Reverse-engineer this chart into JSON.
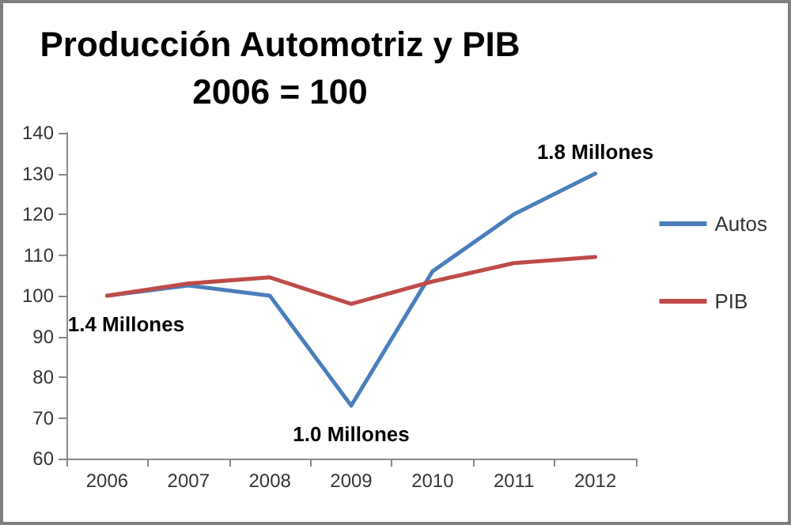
{
  "chart_data": {
    "type": "line",
    "title": "Producción Automotriz y PIB",
    "subtitle": "2006 = 100",
    "categories": [
      "2006",
      "2007",
      "2008",
      "2009",
      "2010",
      "2011",
      "2012"
    ],
    "series": [
      {
        "name": "Autos",
        "color": "#4a7ebb",
        "values": [
          100,
          102.5,
          100,
          73,
          106,
          120,
          130
        ]
      },
      {
        "name": "PIB",
        "color": "#be4b48",
        "values": [
          100,
          103,
          104.5,
          98,
          103.5,
          108,
          109.5
        ]
      }
    ],
    "ylim": [
      60,
      140
    ],
    "yticks": [
      60,
      70,
      80,
      90,
      100,
      110,
      120,
      130,
      140
    ],
    "grid": false,
    "legend": "right",
    "marker": "none",
    "line_style": "solid",
    "annotations": [
      {
        "text": "1.4 Millones",
        "x": "2006",
        "y": 100
      },
      {
        "text": "1.0 Millones",
        "x": "2009",
        "y": 73
      },
      {
        "text": "1.8 Millones",
        "x": "2012",
        "y": 130
      }
    ]
  }
}
